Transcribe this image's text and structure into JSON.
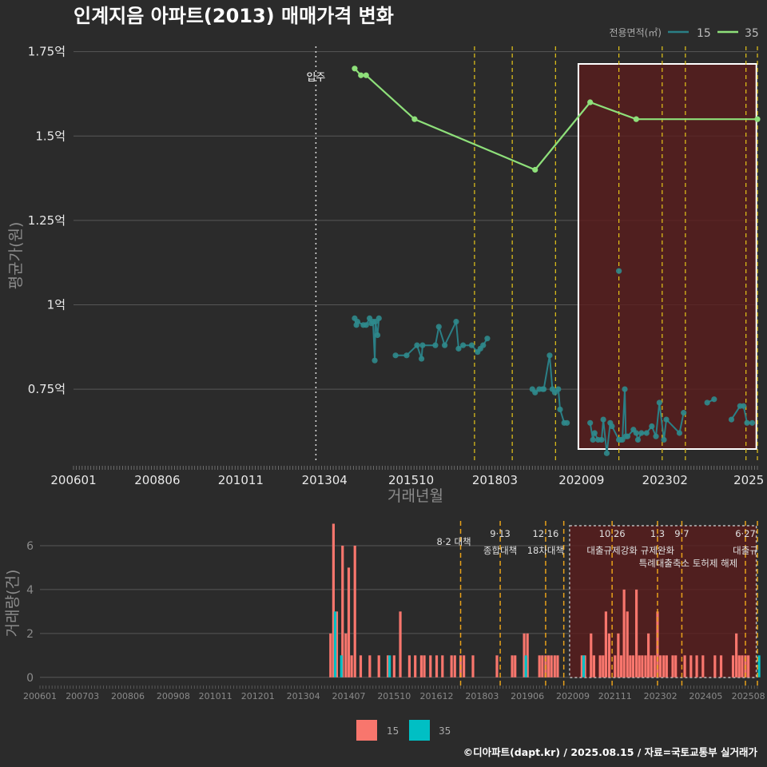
{
  "title": "인계지음 아파트(2013) 매매가격 변화",
  "footer": "©디아파트(dapt.kr) / 2025.08.15 / 자료=국토교통부 실거래가",
  "colors": {
    "s15_line": "#2a7f86",
    "s15_point": "#2f8a8c",
    "s35": "#8ee07a",
    "bar15": "#f8766d",
    "bar35": "#00bfc4",
    "evt": "#e6c619",
    "evt2": "#e8a11a",
    "box": "#ffffff",
    "shade": "#5a1d1d"
  },
  "chart_data": [
    {
      "type": "line",
      "title": "인계지음 아파트(2013) 매매가격 변화",
      "xlabel": "거래년월",
      "ylabel": "평균가(원)",
      "xlim": [
        2006.0,
        2025.75
      ],
      "ylim": [
        0.53,
        1.78
      ],
      "y_ticks": [
        {
          "v": 0.75,
          "label": "0.75억"
        },
        {
          "v": 1.0,
          "label": "1억"
        },
        {
          "v": 1.25,
          "label": "1.25억"
        },
        {
          "v": 1.5,
          "label": "1.5억"
        },
        {
          "v": 1.75,
          "label": "1.75억"
        }
      ],
      "x_ticks": [
        {
          "v": 2006.0,
          "label": "200601"
        },
        {
          "v": 2008.42,
          "label": "200806"
        },
        {
          "v": 2010.83,
          "label": "201011"
        },
        {
          "v": 2013.25,
          "label": "201304"
        },
        {
          "v": 2015.75,
          "label": "201510"
        },
        {
          "v": 2018.17,
          "label": "201803"
        },
        {
          "v": 2020.67,
          "label": "202009"
        },
        {
          "v": 2023.08,
          "label": "202302"
        },
        {
          "v": 2025.5,
          "label": "2025"
        }
      ],
      "legend": {
        "title": "전용면적(㎡)",
        "position": "top-right",
        "items": [
          "15",
          "35"
        ]
      },
      "annotation": {
        "label": "입주",
        "x": 2013.0
      },
      "highlight_range": [
        2020.58,
        2025.72
      ],
      "event_lines": [
        2017.58,
        2018.67,
        2019.92,
        2021.75,
        2023.0,
        2023.67,
        2025.42,
        2025.75
      ],
      "series": [
        {
          "name": "15",
          "points": [
            [
              2014.12,
              0.96
            ],
            [
              2014.17,
              0.94
            ],
            [
              2014.2,
              0.95
            ],
            [
              2014.37,
              0.94
            ],
            [
              2014.45,
              0.94
            ],
            [
              2014.55,
              0.96
            ],
            [
              2014.6,
              0.945
            ],
            [
              2014.65,
              0.95
            ],
            [
              2014.7,
              0.835
            ],
            [
              2014.72,
              0.95
            ],
            [
              2014.78,
              0.91
            ],
            [
              2014.82,
              0.96
            ],
            [
              2015.3,
              0.85
            ],
            [
              2015.62,
              0.85
            ],
            [
              2015.92,
              0.88
            ],
            [
              2016.05,
              0.84
            ],
            [
              2016.08,
              0.88
            ],
            [
              2016.45,
              0.88
            ],
            [
              2016.55,
              0.935
            ],
            [
              2016.72,
              0.88
            ],
            [
              2017.05,
              0.95
            ],
            [
              2017.12,
              0.87
            ],
            [
              2017.25,
              0.88
            ],
            [
              2017.5,
              0.88
            ],
            [
              2017.67,
              0.86
            ],
            [
              2017.75,
              0.87
            ],
            [
              2017.83,
              0.88
            ],
            [
              2017.95,
              0.9
            ],
            [
              2019.25,
              0.75
            ],
            [
              2019.33,
              0.74
            ],
            [
              2019.45,
              0.75
            ],
            [
              2019.55,
              0.75
            ],
            [
              2019.58,
              0.75
            ],
            [
              2019.75,
              0.85
            ],
            [
              2019.83,
              0.75
            ],
            [
              2019.9,
              0.74
            ],
            [
              2020.0,
              0.75
            ],
            [
              2020.05,
              0.69
            ],
            [
              2020.17,
              0.65
            ],
            [
              2020.25,
              0.65
            ],
            [
              2020.92,
              0.65
            ],
            [
              2021.0,
              0.6
            ],
            [
              2021.05,
              0.62
            ],
            [
              2021.15,
              0.6
            ],
            [
              2021.25,
              0.6
            ],
            [
              2021.3,
              0.66
            ],
            [
              2021.4,
              0.56
            ],
            [
              2021.5,
              0.65
            ],
            [
              2021.55,
              0.64
            ],
            [
              2021.75,
              0.6
            ],
            [
              2021.8,
              0.6
            ],
            [
              2021.85,
              0.6
            ],
            [
              2021.92,
              0.75
            ],
            [
              2021.95,
              0.61
            ],
            [
              2022.0,
              0.61
            ],
            [
              2022.17,
              0.63
            ],
            [
              2022.25,
              0.62
            ],
            [
              2022.3,
              0.6
            ],
            [
              2022.4,
              0.62
            ],
            [
              2022.55,
              0.62
            ],
            [
              2022.7,
              0.64
            ],
            [
              2022.82,
              0.61
            ],
            [
              2022.92,
              0.71
            ],
            [
              2023.05,
              0.6
            ],
            [
              2023.12,
              0.66
            ],
            [
              2023.5,
              0.62
            ],
            [
              2023.62,
              0.68
            ],
            [
              2024.3,
              0.71
            ],
            [
              2024.5,
              0.72
            ],
            [
              2025.0,
              0.66
            ],
            [
              2025.25,
              0.7
            ],
            [
              2025.35,
              0.7
            ],
            [
              2025.45,
              0.65
            ],
            [
              2025.6,
              0.65
            ]
          ],
          "extra_points": [
            [
              2021.75,
              1.1
            ]
          ]
        },
        {
          "name": "35",
          "points": [
            [
              2014.12,
              1.7
            ],
            [
              2014.3,
              1.68
            ],
            [
              2014.45,
              1.68
            ],
            [
              2015.85,
              1.55
            ],
            [
              2019.33,
              1.4
            ],
            [
              2020.92,
              1.6
            ],
            [
              2022.25,
              1.55
            ],
            [
              2025.75,
              1.55
            ]
          ]
        }
      ]
    },
    {
      "type": "bar",
      "xlabel": "",
      "ylabel": "거래량(건)",
      "ylim": [
        -0.3,
        7.2
      ],
      "y_ticks": [
        0,
        2,
        4,
        6
      ],
      "x_ticks": [
        {
          "v": 2006.0,
          "label": "200601"
        },
        {
          "v": 2007.17,
          "label": "200703"
        },
        {
          "v": 2008.42,
          "label": "200806"
        },
        {
          "v": 2009.67,
          "label": "200908"
        },
        {
          "v": 2010.83,
          "label": "201011"
        },
        {
          "v": 2012.0,
          "label": "201201"
        },
        {
          "v": 2013.25,
          "label": "201304"
        },
        {
          "v": 2014.5,
          "label": "201407"
        },
        {
          "v": 2015.75,
          "label": "201510"
        },
        {
          "v": 2016.92,
          "label": "201612"
        },
        {
          "v": 2018.17,
          "label": "201803"
        },
        {
          "v": 2019.42,
          "label": "201906"
        },
        {
          "v": 2020.67,
          "label": "202009"
        },
        {
          "v": 2021.83,
          "label": "202111"
        },
        {
          "v": 2023.08,
          "label": "202302"
        },
        {
          "v": 2024.33,
          "label": "202405"
        },
        {
          "v": 2025.5,
          "label": "202508"
        }
      ],
      "legend": {
        "position": "bottom",
        "items": [
          "15",
          "35"
        ]
      },
      "highlight_range": [
        2020.58,
        2025.72
      ],
      "events": [
        {
          "x": 2017.58,
          "label": "8·2 대책",
          "label2": ""
        },
        {
          "x": 2018.67,
          "label": "9·13",
          "label2": "종합대책"
        },
        {
          "x": 2019.92,
          "label": "12·16",
          "label2": "18차대책"
        },
        {
          "x": 2020.42,
          "label": "",
          "label2": ""
        },
        {
          "x": 2021.75,
          "label": "10.26",
          "label2": "대출규제강화"
        },
        {
          "x": 2023.0,
          "label": "1.3",
          "label2": "규제완화"
        },
        {
          "x": 2023.67,
          "label": "9·7",
          "label2": "특례대출축소 토허제 해제"
        },
        {
          "x": 2025.42,
          "label": "6·27",
          "label2": "대출규"
        },
        {
          "x": 2025.75,
          "label": "",
          "label2": ""
        }
      ],
      "series": [
        {
          "name": "15",
          "bars": [
            [
              2014.0,
              2
            ],
            [
              2014.08,
              7
            ],
            [
              2014.17,
              3
            ],
            [
              2014.33,
              6
            ],
            [
              2014.42,
              2
            ],
            [
              2014.5,
              5
            ],
            [
              2014.58,
              1
            ],
            [
              2014.67,
              6
            ],
            [
              2014.83,
              1
            ],
            [
              2015.08,
              1
            ],
            [
              2015.33,
              1
            ],
            [
              2015.58,
              1
            ],
            [
              2015.75,
              1
            ],
            [
              2015.92,
              3
            ],
            [
              2016.17,
              1
            ],
            [
              2016.33,
              1
            ],
            [
              2016.5,
              1
            ],
            [
              2016.58,
              1
            ],
            [
              2016.75,
              1
            ],
            [
              2016.92,
              1
            ],
            [
              2017.08,
              1
            ],
            [
              2017.33,
              1
            ],
            [
              2017.42,
              1
            ],
            [
              2017.58,
              1
            ],
            [
              2017.67,
              1
            ],
            [
              2017.92,
              1
            ],
            [
              2018.58,
              1
            ],
            [
              2019.0,
              1
            ],
            [
              2019.08,
              1
            ],
            [
              2019.33,
              2
            ],
            [
              2019.42,
              2
            ],
            [
              2019.75,
              1
            ],
            [
              2019.83,
              1
            ],
            [
              2019.92,
              1
            ],
            [
              2020.0,
              1
            ],
            [
              2020.08,
              1
            ],
            [
              2020.17,
              1
            ],
            [
              2020.25,
              1
            ],
            [
              2020.92,
              1
            ],
            [
              2021.0,
              1
            ],
            [
              2021.17,
              2
            ],
            [
              2021.25,
              1
            ],
            [
              2021.42,
              1
            ],
            [
              2021.5,
              1
            ],
            [
              2021.58,
              3
            ],
            [
              2021.67,
              2
            ],
            [
              2021.83,
              1
            ],
            [
              2021.92,
              2
            ],
            [
              2022.0,
              1
            ],
            [
              2022.08,
              4
            ],
            [
              2022.17,
              3
            ],
            [
              2022.25,
              1
            ],
            [
              2022.33,
              1
            ],
            [
              2022.42,
              4
            ],
            [
              2022.5,
              1
            ],
            [
              2022.58,
              1
            ],
            [
              2022.67,
              1
            ],
            [
              2022.75,
              2
            ],
            [
              2022.83,
              1
            ],
            [
              2022.92,
              1
            ],
            [
              2023.0,
              3
            ],
            [
              2023.08,
              1
            ],
            [
              2023.17,
              1
            ],
            [
              2023.25,
              1
            ],
            [
              2023.42,
              1
            ],
            [
              2023.5,
              1
            ],
            [
              2023.75,
              1
            ],
            [
              2023.92,
              1
            ],
            [
              2024.08,
              1
            ],
            [
              2024.25,
              1
            ],
            [
              2024.58,
              1
            ],
            [
              2024.75,
              1
            ],
            [
              2025.08,
              1
            ],
            [
              2025.17,
              2
            ],
            [
              2025.25,
              1
            ],
            [
              2025.33,
              1
            ],
            [
              2025.42,
              1
            ],
            [
              2025.5,
              1
            ]
          ]
        },
        {
          "name": "35",
          "bars": [
            [
              2014.08,
              3
            ],
            [
              2014.25,
              1
            ],
            [
              2015.58,
              1
            ],
            [
              2019.33,
              1
            ],
            [
              2020.92,
              1
            ],
            [
              2025.75,
              1
            ]
          ]
        }
      ]
    }
  ]
}
